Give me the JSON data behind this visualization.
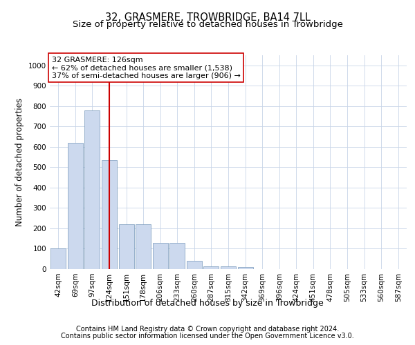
{
  "title": "32, GRASMERE, TROWBRIDGE, BA14 7LL",
  "subtitle": "Size of property relative to detached houses in Trowbridge",
  "xlabel": "Distribution of detached houses by size in Trowbridge",
  "ylabel": "Number of detached properties",
  "bar_labels": [
    "42sqm",
    "69sqm",
    "97sqm",
    "124sqm",
    "151sqm",
    "178sqm",
    "206sqm",
    "233sqm",
    "260sqm",
    "287sqm",
    "315sqm",
    "342sqm",
    "369sqm",
    "396sqm",
    "424sqm",
    "451sqm",
    "478sqm",
    "505sqm",
    "533sqm",
    "560sqm",
    "587sqm"
  ],
  "bar_values": [
    100,
    620,
    780,
    535,
    220,
    220,
    130,
    130,
    40,
    15,
    15,
    10,
    0,
    0,
    0,
    0,
    0,
    0,
    0,
    0,
    0
  ],
  "bar_color": "#ccd9ee",
  "bar_edgecolor": "#7799bb",
  "red_line_index": 3,
  "red_line_color": "#cc0000",
  "ylim": [
    0,
    1050
  ],
  "yticks": [
    0,
    100,
    200,
    300,
    400,
    500,
    600,
    700,
    800,
    900,
    1000
  ],
  "annotation_text": "32 GRASMERE: 126sqm\n← 62% of detached houses are smaller (1,538)\n37% of semi-detached houses are larger (906) →",
  "annotation_box_color": "#ffffff",
  "annotation_box_edgecolor": "#cc0000",
  "footer_line1": "Contains HM Land Registry data © Crown copyright and database right 2024.",
  "footer_line2": "Contains public sector information licensed under the Open Government Licence v3.0.",
  "bg_color": "#ffffff",
  "grid_color": "#c8d4e8",
  "title_fontsize": 10.5,
  "subtitle_fontsize": 9.5,
  "xlabel_fontsize": 9,
  "ylabel_fontsize": 8.5,
  "tick_fontsize": 7.5,
  "annot_fontsize": 8,
  "footer_fontsize": 7
}
